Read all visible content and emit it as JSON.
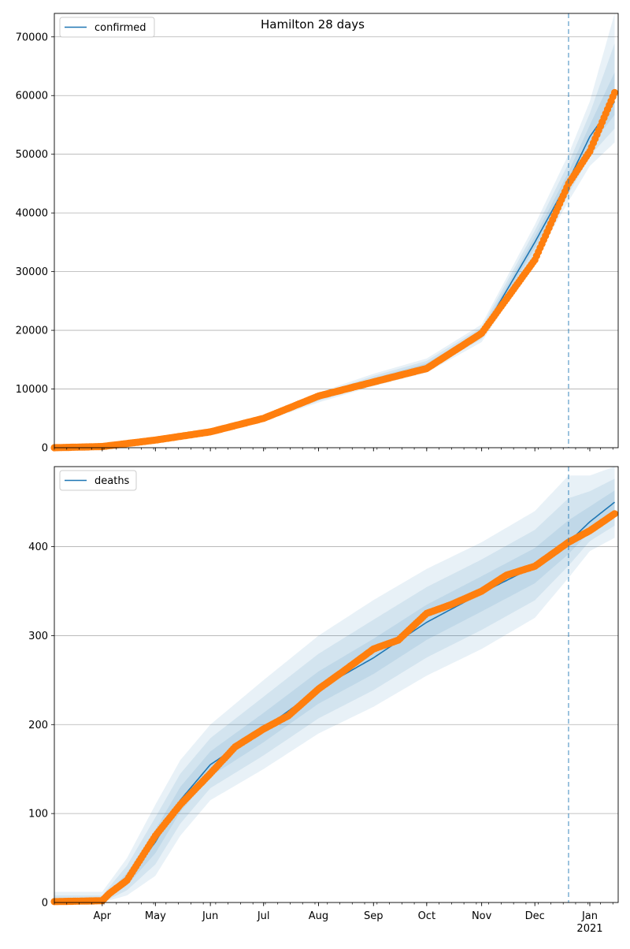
{
  "chart_data": [
    {
      "type": "line",
      "title": "Hamilton 28 days",
      "xlabel": "",
      "ylabel": "",
      "ylim": [
        0,
        74000
      ],
      "grid": "y-axis only",
      "legend_position": "top-left",
      "colors": {
        "model": "#1f77b4",
        "observed": "#ff7f0e",
        "band": "#1f77b4"
      },
      "y_ticks": [
        "0",
        "10000",
        "20000",
        "30000",
        "40000",
        "50000",
        "60000",
        "70000"
      ],
      "series": [
        {
          "name": "confirmed",
          "kind": "model median line",
          "x": [
            "2020-03-05",
            "2020-04-01",
            "2020-05-01",
            "2020-06-01",
            "2020-07-01",
            "2020-08-01",
            "2020-09-01",
            "2020-10-01",
            "2020-11-01",
            "2020-12-01",
            "2020-12-20",
            "2021-01-01",
            "2021-01-15"
          ],
          "y": [
            0,
            200,
            1200,
            2600,
            5000,
            8500,
            11500,
            14000,
            19500,
            35000,
            45500,
            53000,
            59000
          ],
          "band_90": [
            [
              0,
              0
            ],
            [
              0,
              400
            ],
            [
              900,
              1600
            ],
            [
              2300,
              3000
            ],
            [
              4500,
              5600
            ],
            [
              7700,
              9400
            ],
            [
              10500,
              12600
            ],
            [
              12800,
              15200
            ],
            [
              18000,
              21000
            ],
            [
              32000,
              38000
            ],
            [
              42000,
              50000
            ],
            [
              48000,
              59000
            ],
            [
              52000,
              74000
            ]
          ]
        },
        {
          "kind": "observed points",
          "x": [
            "2020-03-05",
            "2020-04-01",
            "2020-05-01",
            "2020-06-01",
            "2020-07-01",
            "2020-08-01",
            "2020-09-01",
            "2020-10-01",
            "2020-11-01",
            "2020-12-01",
            "2020-12-20",
            "2021-01-01",
            "2021-01-15"
          ],
          "y": [
            0,
            200,
            1300,
            2700,
            5000,
            8800,
            11200,
            13500,
            19500,
            32000,
            45000,
            50500,
            60500
          ]
        }
      ]
    },
    {
      "type": "line",
      "title": "",
      "xlabel": "",
      "ylabel": "",
      "ylim": [
        0,
        490
      ],
      "grid": "y-axis only",
      "legend_position": "top-left",
      "colors": {
        "model": "#1f77b4",
        "observed": "#ff7f0e",
        "band": "#1f77b4"
      },
      "y_ticks": [
        "0",
        "100",
        "200",
        "300",
        "400"
      ],
      "x_ticks": [
        "Apr",
        "May",
        "Jun",
        "Jul",
        "Aug",
        "Sep",
        "Oct",
        "Nov",
        "Dec",
        "Jan"
      ],
      "x_tick_sublabel": "2021",
      "forecast_start": "2020-12-20",
      "series": [
        {
          "name": "deaths",
          "kind": "model median line",
          "x": [
            "2020-03-05",
            "2020-04-01",
            "2020-04-15",
            "2020-05-01",
            "2020-05-15",
            "2020-06-01",
            "2020-07-01",
            "2020-08-01",
            "2020-09-01",
            "2020-10-01",
            "2020-11-01",
            "2020-12-01",
            "2020-12-20",
            "2021-01-01",
            "2021-01-15"
          ],
          "y": [
            0,
            0,
            25,
            68,
            115,
            155,
            195,
            240,
            275,
            315,
            348,
            378,
            405,
            428,
            450
          ],
          "band_90": [
            [
              0,
              12
            ],
            [
              0,
              12
            ],
            [
              8,
              50
            ],
            [
              30,
              110
            ],
            [
              75,
              160
            ],
            [
              115,
              200
            ],
            [
              150,
              250
            ],
            [
              190,
              300
            ],
            [
              220,
              340
            ],
            [
              255,
              375
            ],
            [
              285,
              405
            ],
            [
              320,
              440
            ],
            [
              365,
              480
            ],
            [
              395,
              480
            ],
            [
              410,
              490
            ]
          ]
        },
        {
          "kind": "observed points",
          "x": [
            "2020-03-05",
            "2020-04-01",
            "2020-04-05",
            "2020-04-15",
            "2020-05-01",
            "2020-05-15",
            "2020-06-01",
            "2020-06-15",
            "2020-07-01",
            "2020-07-15",
            "2020-08-01",
            "2020-08-15",
            "2020-09-01",
            "2020-09-15",
            "2020-10-01",
            "2020-10-15",
            "2020-11-01",
            "2020-11-15",
            "2020-12-01",
            "2020-12-20",
            "2021-01-01",
            "2021-01-15"
          ],
          "y": [
            1,
            2,
            10,
            25,
            75,
            110,
            145,
            175,
            195,
            210,
            240,
            260,
            285,
            295,
            325,
            335,
            350,
            368,
            378,
            405,
            418,
            437
          ]
        }
      ]
    }
  ]
}
